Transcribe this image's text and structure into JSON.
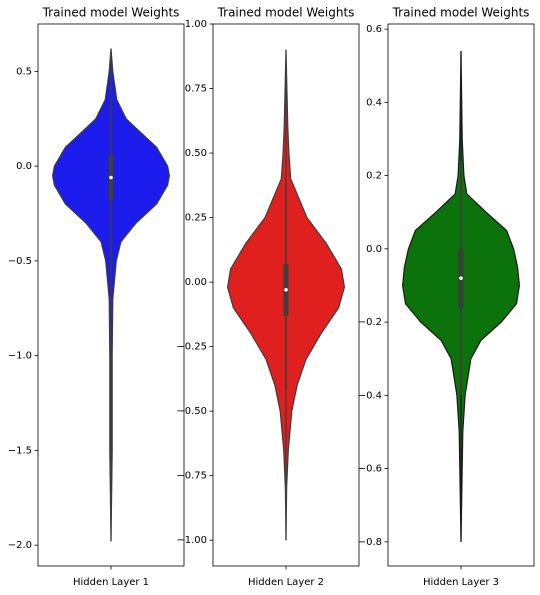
{
  "chart_data": [
    {
      "type": "violin",
      "title": "Trained model Weights",
      "categories": [
        "Hidden Layer 1"
      ],
      "color": "#1c1cec",
      "edge": "#3d3d3d",
      "ylim": [
        -2.11,
        0.75
      ],
      "yticks": [
        0.5,
        {
          "value": 0,
          "label": "0.0"
        },
        {
          "value": -0.5,
          "label": "−0.5"
        },
        {
          "value": -1,
          "label": "−1.0"
        },
        {
          "value": -1.5,
          "label": "−1.5"
        },
        {
          "value": -2,
          "label": "−2.0"
        }
      ],
      "density": {
        "y": [
          0.62,
          0.5,
          0.35,
          0.25,
          0.2,
          0.1,
          0.0,
          -0.05,
          -0.1,
          -0.2,
          -0.3,
          -0.4,
          -0.5,
          -0.7,
          -1.0,
          -1.5,
          -1.98
        ],
        "width": [
          0,
          0.03,
          0.1,
          0.26,
          0.43,
          0.78,
          0.97,
          1,
          0.97,
          0.78,
          0.43,
          0.17,
          0.09,
          0.03,
          0.02,
          0.02,
          0
        ]
      },
      "box": {
        "whisker_low": -0.55,
        "q1": -0.18,
        "median": -0.06,
        "q3": 0.06,
        "whisker_high": 0.35
      }
    },
    {
      "type": "violin",
      "title": "Trained model Weights",
      "categories": [
        "Hidden Layer 2"
      ],
      "color": "#e01f1f",
      "edge": "#3d3d3d",
      "ylim": [
        -1.1,
        1.0
      ],
      "yticks": [
        {
          "value": 1,
          "label": "1.00"
        },
        0.75,
        {
          "value": 0.5,
          "label": "0.50"
        },
        0.25,
        {
          "value": 0,
          "label": "0.00"
        },
        {
          "value": -0.25,
          "label": "−0.25"
        },
        {
          "value": -0.5,
          "label": "−0.50"
        },
        {
          "value": -0.75,
          "label": "−0.75"
        },
        {
          "value": -1,
          "label": "−1.00"
        }
      ],
      "density": {
        "y": [
          0.9,
          0.6,
          0.5,
          0.4,
          0.25,
          0.15,
          0.05,
          -0.02,
          -0.1,
          -0.2,
          -0.3,
          -0.4,
          -0.5,
          -0.65,
          -0.8,
          -1.0
        ],
        "width": [
          0,
          0.03,
          0.05,
          0.08,
          0.36,
          0.69,
          0.95,
          1,
          0.9,
          0.6,
          0.34,
          0.19,
          0.1,
          0.04,
          0.01,
          0
        ]
      },
      "box": {
        "whisker_low": -0.42,
        "q1": -0.13,
        "median": -0.03,
        "q3": 0.07,
        "whisker_high": 0.38
      }
    },
    {
      "type": "violin",
      "title": "Trained model Weights",
      "categories": [
        "Hidden Layer 3"
      ],
      "color": "#0c730c",
      "edge": "#1a1a1a",
      "ylim": [
        -0.866,
        0.614
      ],
      "yticks": [
        0.6,
        0.4,
        0.2,
        {
          "value": 0,
          "label": "0.0"
        },
        {
          "value": -0.2,
          "label": "−0.2"
        },
        {
          "value": -0.4,
          "label": "−0.4"
        },
        {
          "value": -0.6,
          "label": "−0.6"
        },
        {
          "value": -0.8,
          "label": "−0.8"
        }
      ],
      "density": {
        "y": [
          0.54,
          0.3,
          0.2,
          0.15,
          0.1,
          0.05,
          0.0,
          -0.05,
          -0.1,
          -0.15,
          -0.2,
          -0.25,
          -0.3,
          -0.4,
          -0.5,
          -0.7,
          -0.8
        ],
        "width": [
          0,
          0.02,
          0.05,
          0.1,
          0.43,
          0.78,
          0.9,
          0.97,
          1,
          0.95,
          0.69,
          0.34,
          0.17,
          0.07,
          0.03,
          0.01,
          0
        ]
      },
      "box": {
        "whisker_low": -0.4,
        "q1": -0.16,
        "median": -0.08,
        "q3": 0.0,
        "whisker_high": 0.24
      }
    }
  ]
}
